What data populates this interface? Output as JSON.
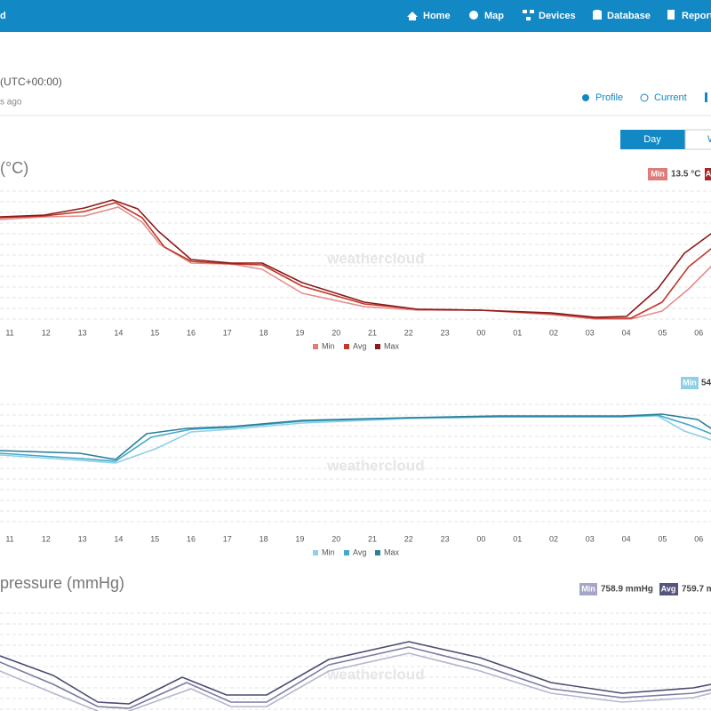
{
  "nav": {
    "brand": "d",
    "items": [
      "Home",
      "Map",
      "Devices",
      "Database",
      "Report"
    ]
  },
  "header": {
    "timezone": "(UTC+00:00)",
    "updated": "s ago"
  },
  "tabs": [
    "Profile",
    "Current"
  ],
  "period": [
    "Day",
    "W"
  ],
  "watermark": "weathercloud",
  "charts": [
    {
      "title": "(°C)",
      "summary": [
        {
          "label": "Min",
          "value": "13.5 °C"
        },
        {
          "label": "A"
        }
      ],
      "x_labels": [
        "11",
        "12",
        "13",
        "14",
        "15",
        "16",
        "17",
        "18",
        "19",
        "20",
        "21",
        "22",
        "23",
        "00",
        "01",
        "02",
        "03",
        "04",
        "05",
        "06"
      ],
      "legend": [
        "Min",
        "Avg",
        "Max"
      ]
    },
    {
      "summary": [
        {
          "label": "Min",
          "value": "54"
        }
      ],
      "x_labels": [
        "11",
        "12",
        "13",
        "14",
        "15",
        "16",
        "17",
        "18",
        "19",
        "20",
        "21",
        "22",
        "23",
        "00",
        "01",
        "02",
        "03",
        "04",
        "05",
        "06"
      ],
      "legend": [
        "Min",
        "Avg",
        "Max"
      ]
    },
    {
      "title": "pressure (mmHg)",
      "summary": [
        {
          "label": "Min",
          "value": "758.9 mmHg"
        },
        {
          "label": "Avg",
          "value": "759.7 m"
        }
      ]
    }
  ]
}
